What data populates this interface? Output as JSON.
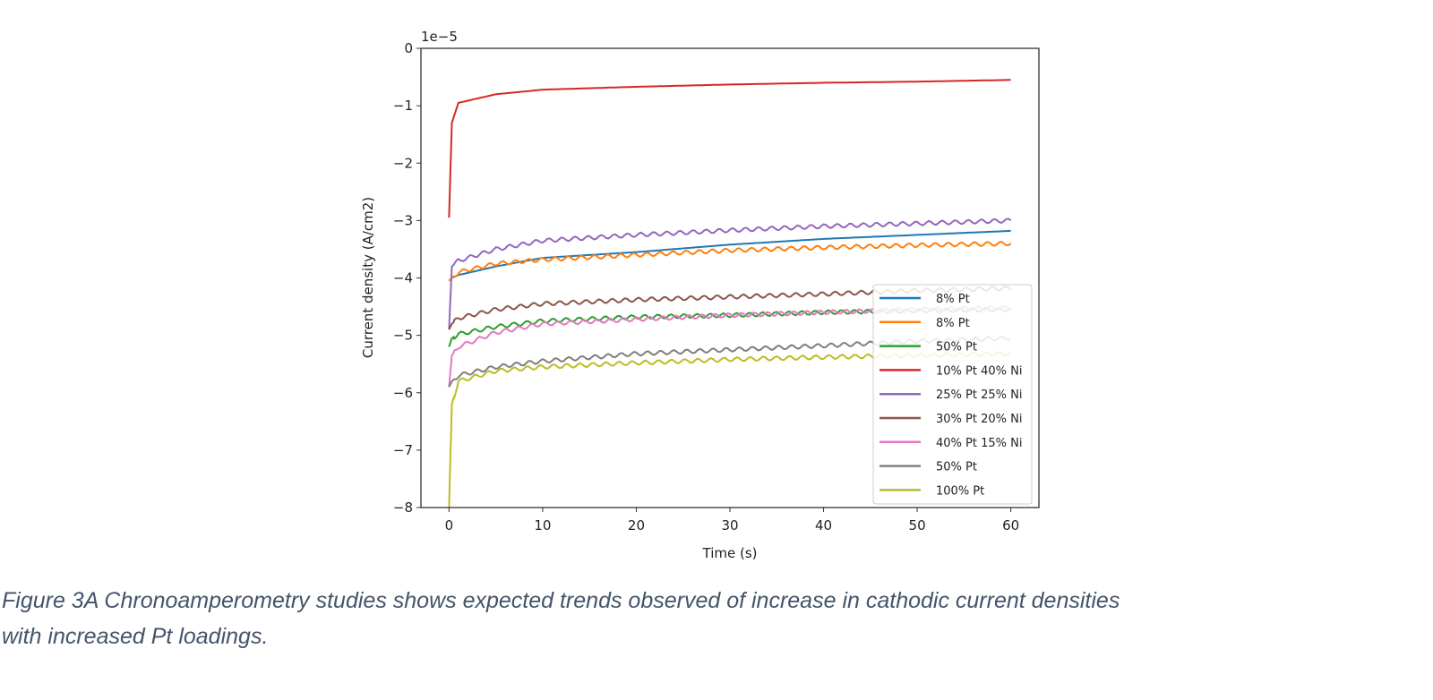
{
  "chart_data": {
    "type": "line",
    "title": "",
    "xlabel": "Time (s)",
    "ylabel": "Current density (A/cm2)",
    "y_scale_label": "1e−5",
    "y_units_multiplier": 1e-05,
    "xlim": [
      -3,
      63
    ],
    "ylim": [
      -8,
      0
    ],
    "xticks": [
      "0",
      "10",
      "20",
      "30",
      "40",
      "50",
      "60"
    ],
    "yticks": [
      "0",
      "−1",
      "−2",
      "−3",
      "−4",
      "−5",
      "−6",
      "−7",
      "−8"
    ],
    "legend_position": "lower-right",
    "x": [
      0,
      0.3,
      1,
      5,
      10,
      20,
      30,
      40,
      50,
      60
    ],
    "series": [
      {
        "name": "8% Pt",
        "color": "#1f77b4",
        "noisy": false,
        "values": [
          -4.05,
          -4.0,
          -3.95,
          -3.8,
          -3.65,
          -3.55,
          -3.42,
          -3.32,
          -3.25,
          -3.18
        ]
      },
      {
        "name": "8% Pt",
        "color": "#ff7f0e",
        "noisy": true,
        "values": [
          -4.05,
          -4.0,
          -3.9,
          -3.75,
          -3.68,
          -3.6,
          -3.52,
          -3.47,
          -3.43,
          -3.4
        ]
      },
      {
        "name": "50% Pt",
        "color": "#2ca02c",
        "noisy": true,
        "values": [
          -5.2,
          -5.05,
          -4.98,
          -4.85,
          -4.75,
          -4.68,
          -4.65,
          -4.6,
          -4.57,
          -4.55
        ]
      },
      {
        "name": "10% Pt 40% Ni",
        "color": "#d62728",
        "noisy": false,
        "values": [
          -2.95,
          -1.3,
          -0.95,
          -0.8,
          -0.72,
          -0.67,
          -0.63,
          -0.6,
          -0.58,
          -0.55
        ]
      },
      {
        "name": "25% Pt 25% Ni",
        "color": "#9467bd",
        "noisy": true,
        "values": [
          -4.9,
          -3.8,
          -3.7,
          -3.5,
          -3.35,
          -3.25,
          -3.17,
          -3.1,
          -3.05,
          -3.0
        ]
      },
      {
        "name": "30% Pt 20% Ni",
        "color": "#8c564b",
        "noisy": true,
        "values": [
          -4.9,
          -4.8,
          -4.7,
          -4.55,
          -4.45,
          -4.38,
          -4.33,
          -4.28,
          -4.22,
          -4.18
        ]
      },
      {
        "name": "40% Pt 15% Ni",
        "color": "#e377c2",
        "noisy": true,
        "values": [
          -5.9,
          -5.35,
          -5.2,
          -4.95,
          -4.8,
          -4.72,
          -4.65,
          -4.6,
          -4.55,
          -4.52
        ]
      },
      {
        "name": "50% Pt",
        "color": "#7f7f7f",
        "noisy": true,
        "values": [
          -5.9,
          -5.8,
          -5.7,
          -5.55,
          -5.45,
          -5.32,
          -5.25,
          -5.18,
          -5.1,
          -5.05
        ]
      },
      {
        "name": "100% Pt",
        "color": "#bcbd22",
        "noisy": true,
        "values": [
          -8.0,
          -6.2,
          -5.8,
          -5.62,
          -5.55,
          -5.48,
          -5.42,
          -5.38,
          -5.35,
          -5.32
        ]
      }
    ]
  },
  "caption": {
    "line1": "Figure 3A Chronoamperometry studies shows expected trends observed of increase in cathodic current densities",
    "line2": "with increased Pt loadings."
  }
}
